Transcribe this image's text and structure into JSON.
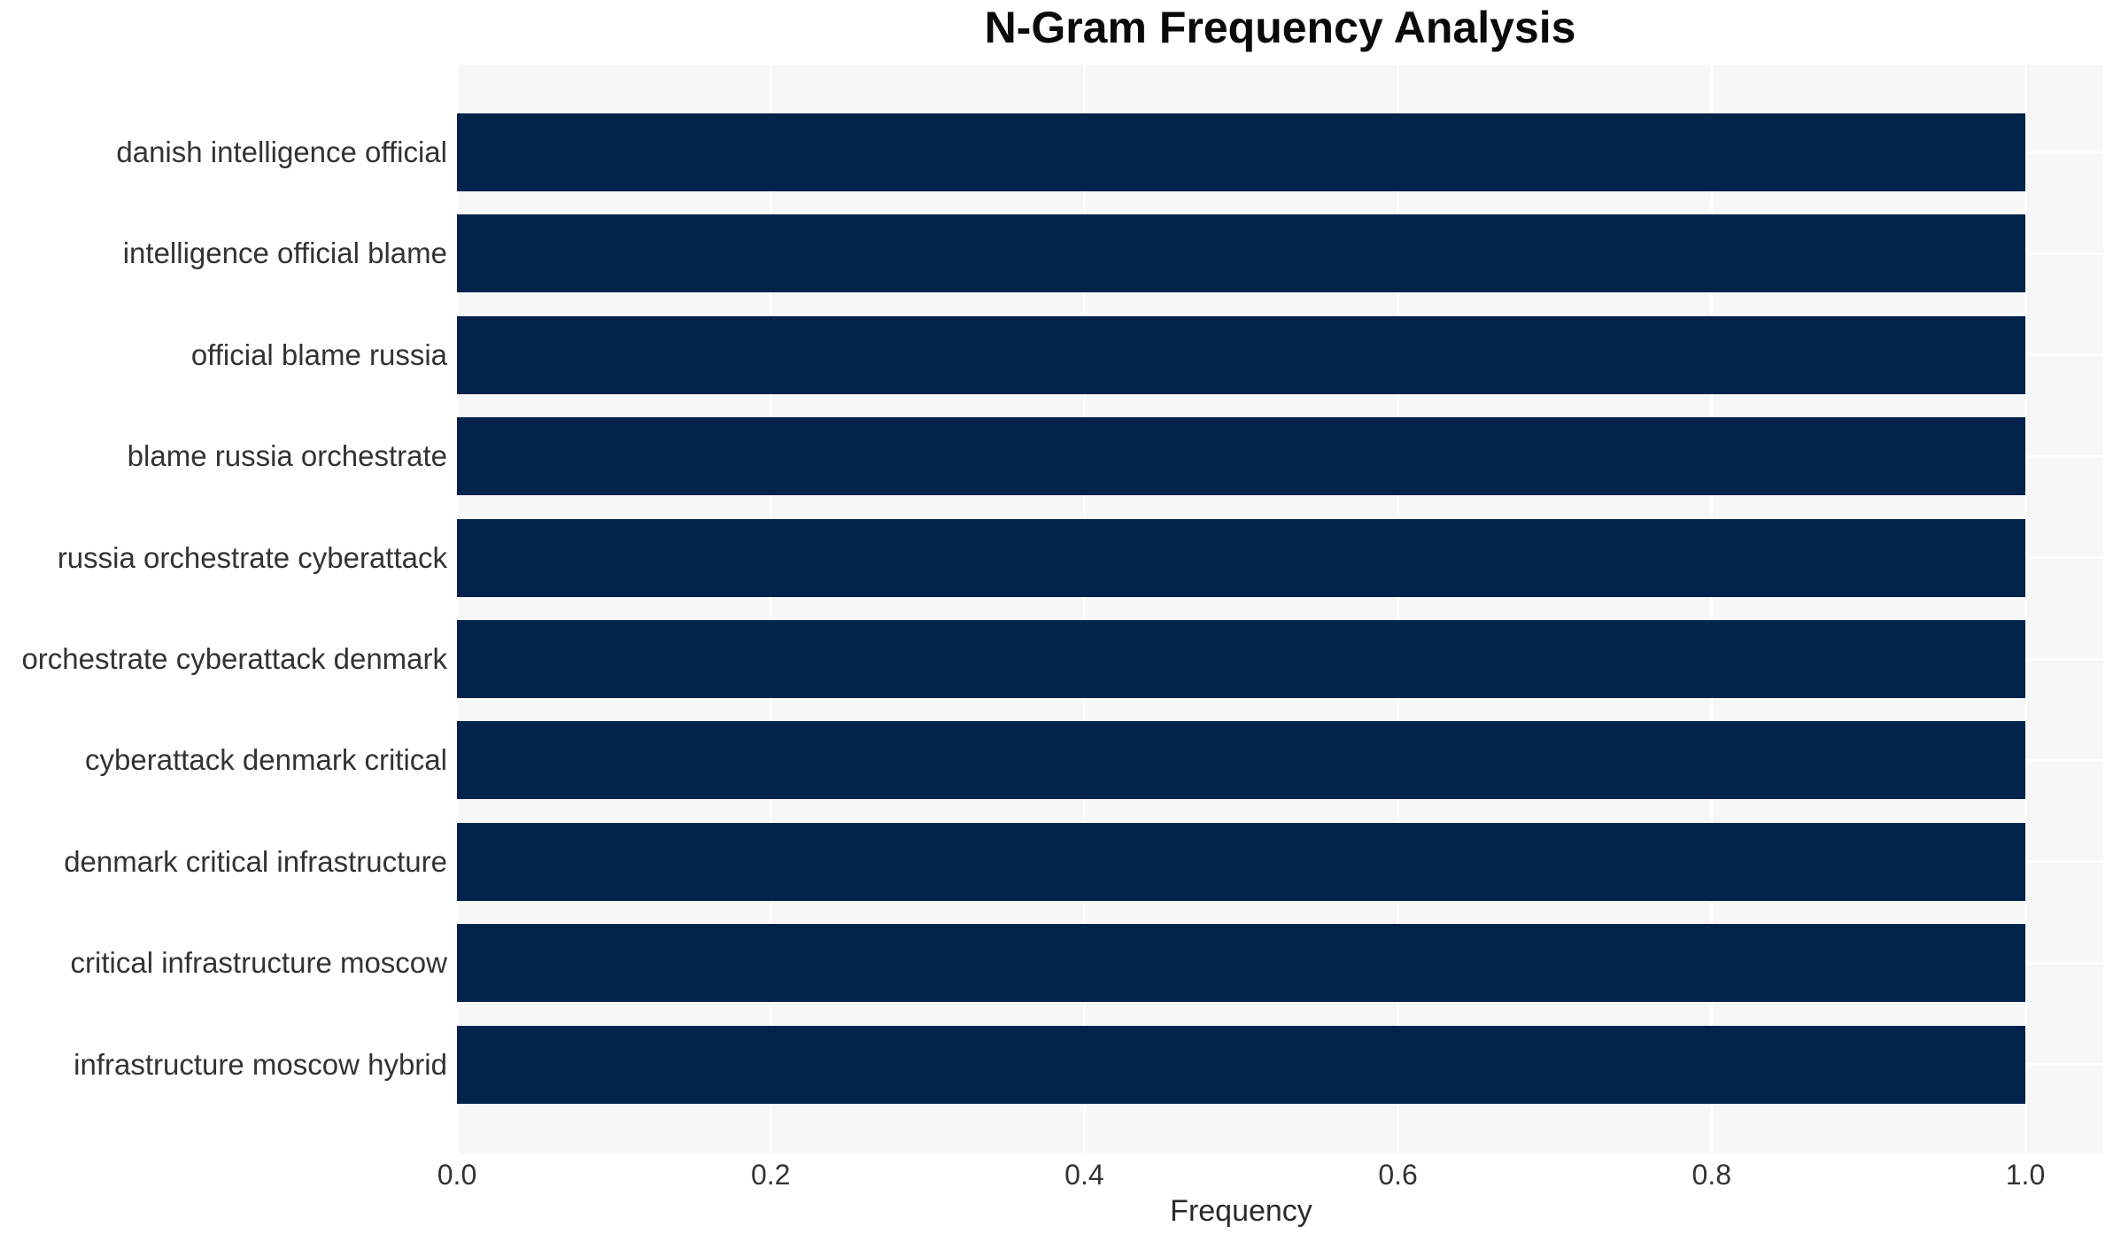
{
  "chart_data": {
    "type": "bar",
    "orientation": "horizontal",
    "title": "N-Gram Frequency Analysis",
    "xlabel": "Frequency",
    "ylabel": "",
    "categories": [
      "danish intelligence official",
      "intelligence official blame",
      "official blame russia",
      "blame russia orchestrate",
      "russia orchestrate cyberattack",
      "orchestrate cyberattack denmark",
      "cyberattack denmark critical",
      "denmark critical infrastructure",
      "critical infrastructure moscow",
      "infrastructure moscow hybrid"
    ],
    "values": [
      1.0,
      1.0,
      1.0,
      1.0,
      1.0,
      1.0,
      1.0,
      1.0,
      1.0,
      1.0
    ],
    "xlim": [
      0,
      1.05
    ],
    "xticks": [
      0.0,
      0.2,
      0.4,
      0.6,
      0.8,
      1.0
    ],
    "xtick_labels": [
      "0.0",
      "0.2",
      "0.4",
      "0.6",
      "0.8",
      "1.0"
    ],
    "grid": true,
    "legend": false,
    "axisbelow": true,
    "colors": {
      "bar": "#02234c",
      "plot_background": "#f7f7f8",
      "gridline": "#ffffff",
      "title_text": "#0a0a0a",
      "tick_text": "#333333",
      "page_background": "#ffffff"
    }
  }
}
